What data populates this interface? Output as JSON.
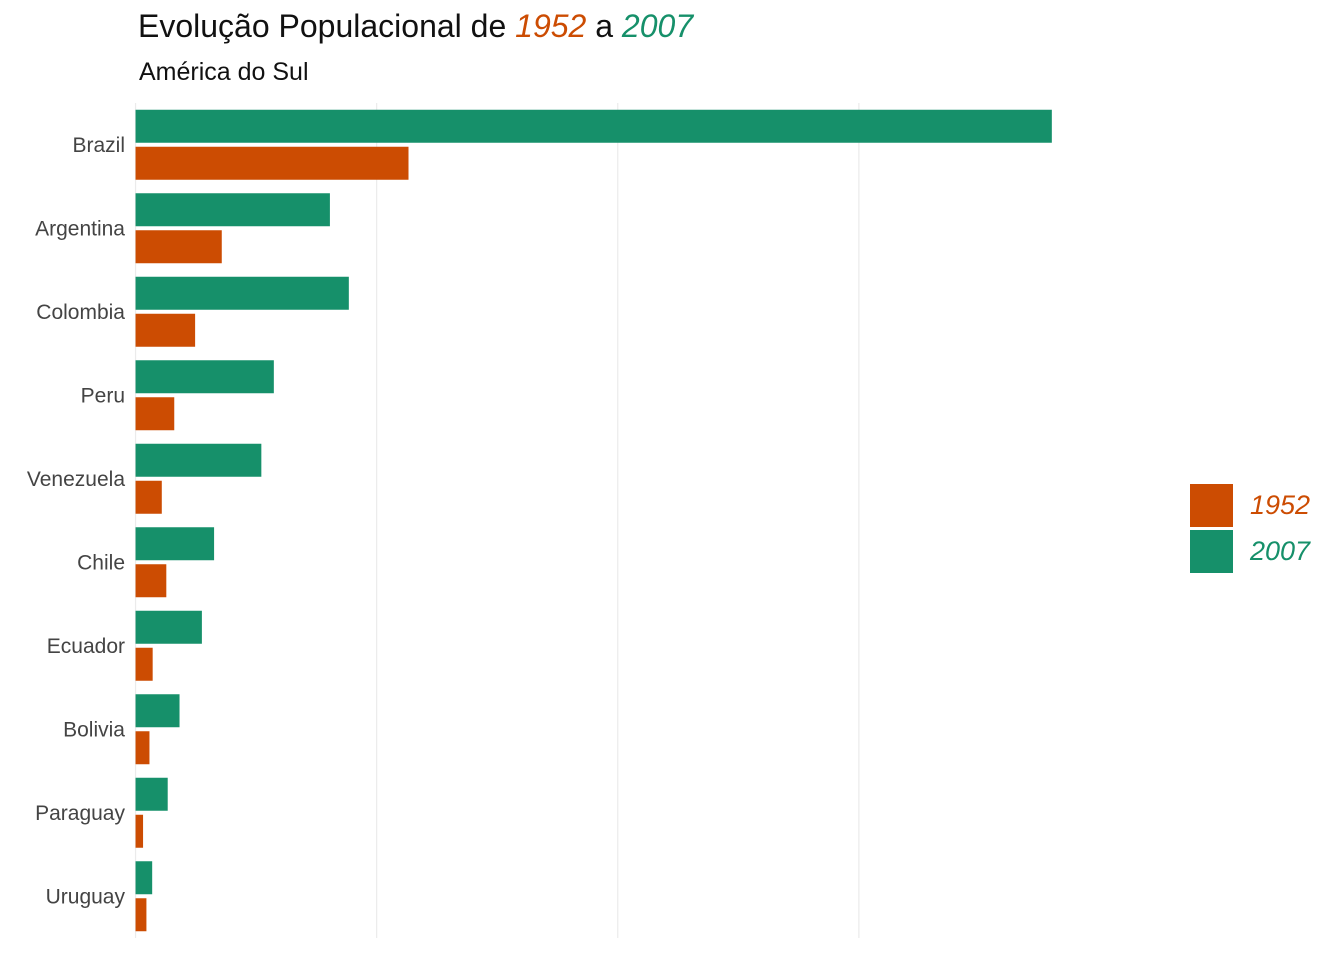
{
  "title": {
    "prefix": "Evolução Populacional de ",
    "year1": "1952",
    "middle": " a ",
    "year2": "2007"
  },
  "subtitle": "América do Sul",
  "colors": {
    "1952": "#cc4c02",
    "2007": "#16906a",
    "grid": "#ebebeb"
  },
  "legend": [
    {
      "label": "1952",
      "color": "#cc4c02"
    },
    {
      "label": "2007",
      "color": "#16906a"
    }
  ],
  "chart_data": {
    "type": "bar",
    "orientation": "horizontal",
    "categories": [
      "Brazil",
      "Argentina",
      "Colombia",
      "Peru",
      "Venezuela",
      "Chile",
      "Ecuador",
      "Bolivia",
      "Paraguay",
      "Uruguay"
    ],
    "series": [
      {
        "name": "2007",
        "values": [
          190010647,
          40301927,
          44227550,
          28674757,
          26084662,
          16284741,
          13755680,
          9119152,
          6667147,
          3447496
        ]
      },
      {
        "name": "1952",
        "values": [
          56602560,
          17876956,
          12350771,
          8025700,
          5439568,
          6377619,
          3548753,
          2883315,
          1555876,
          2252965
        ]
      }
    ],
    "xlim": [
      -25000000,
      200000000
    ],
    "x_gridlines": [
      0,
      50000000,
      100000000,
      150000000
    ],
    "x_tick_labels_visible": false,
    "grid": true,
    "legend_position": "right"
  }
}
